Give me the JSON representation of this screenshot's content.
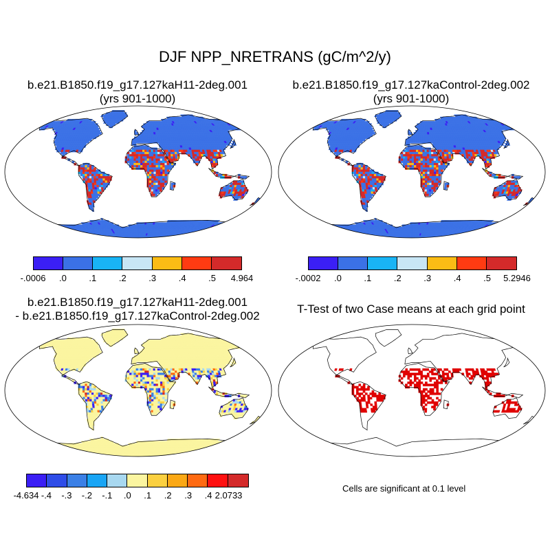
{
  "figure": {
    "main_title": "DJF NPP_NRETRANS (gC/m^2/y)"
  },
  "panels": [
    {
      "id": "top-left",
      "title_line1": "b.e21.B1850.f19_g17.127kaH11-2deg.001",
      "title_line2": "(yrs 901-1000)",
      "colorbar": {
        "colors": [
          "#3b1ff5",
          "#3b71e6",
          "#19b4f5",
          "#c8e6f5",
          "#fbbc15",
          "#ff3b12",
          "#d42a2a"
        ],
        "labels": [
          "-.0006",
          ".0",
          ".1",
          ".2",
          ".3",
          ".4",
          ".5",
          "4.964"
        ]
      }
    },
    {
      "id": "top-right",
      "title_line1": "b.e21.B1850.f19_g17.127kaControl-2deg.002",
      "title_line2": "(yrs 901-1000)",
      "colorbar": {
        "colors": [
          "#3b1ff5",
          "#3b71e6",
          "#19b4f5",
          "#c8e6f5",
          "#fbbc15",
          "#ff3b12",
          "#d42a2a"
        ],
        "labels": [
          "-.0002",
          ".0",
          ".1",
          ".2",
          ".3",
          ".4",
          ".5",
          "5.2946"
        ]
      }
    },
    {
      "id": "bottom-left",
      "title_line1": "b.e21.B1850.f19_g17.127kaH11-2deg.001",
      "title_line2": "- b.e21.B1850.f19_g17.127kaControl-2deg.002",
      "colorbar": {
        "colors": [
          "#3b1ff5",
          "#2f4de8",
          "#3b80e6",
          "#19a5f5",
          "#a8d8f0",
          "#fbf5a0",
          "#fbd040",
          "#fba815",
          "#ff6a12",
          "#ff1010",
          "#d42a2a"
        ],
        "labels": [
          "-4.634",
          "-.4",
          "-.3",
          "-.2",
          "-.1",
          ".0",
          ".1",
          ".2",
          ".3",
          ".4",
          "2.0733"
        ]
      }
    },
    {
      "id": "bottom-right",
      "title_line1": "T-Test of two Case means at each grid point",
      "note": "Cells are significant at 0.1 level"
    }
  ],
  "colors": {
    "ocean": "#ffffff",
    "land_base_top": "#3b71e6",
    "land_base_diff": "#fbf5a0",
    "signif": "#e00000",
    "coast": "#000000"
  }
}
